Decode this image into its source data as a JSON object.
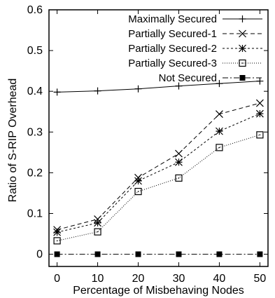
{
  "chart_data": {
    "type": "line",
    "xlabel": "Percentage of Misbehaving Nodes",
    "ylabel": "Ratio of S-RIP Overhead",
    "xlim": [
      -2,
      52
    ],
    "ylim": [
      -0.03,
      0.6
    ],
    "x_ticks": [
      0,
      10,
      20,
      30,
      40,
      50
    ],
    "x_tick_labels": [
      "0",
      "10",
      "20",
      "30",
      "40",
      "50"
    ],
    "y_ticks": [
      0,
      0.1,
      0.2,
      0.3,
      0.4,
      0.5,
      0.6
    ],
    "y_tick_labels": [
      "0",
      "0.1",
      "0.2",
      "0.3",
      "0.4",
      "0.5",
      "0.6"
    ],
    "legend_position": "top-right",
    "grid": false,
    "x": [
      0,
      10,
      20,
      30,
      40,
      50
    ],
    "series": [
      {
        "name": "Maximally Secured",
        "marker": "plus",
        "dash": "",
        "values": [
          0.398,
          0.401,
          0.406,
          0.413,
          0.419,
          0.425
        ]
      },
      {
        "name": "Partially Secured-1",
        "marker": "cross",
        "dash": "6,4",
        "values": [
          0.06,
          0.086,
          0.188,
          0.247,
          0.344,
          0.371
        ]
      },
      {
        "name": "Partially Secured-2",
        "marker": "star",
        "dash": "3,3",
        "values": [
          0.054,
          0.077,
          0.18,
          0.226,
          0.302,
          0.345
        ]
      },
      {
        "name": "Partially Secured-3",
        "marker": "open-square",
        "dash": "1,2",
        "values": [
          0.033,
          0.055,
          0.154,
          0.187,
          0.262,
          0.293
        ]
      },
      {
        "name": "Not Secured",
        "marker": "filled-square",
        "dash": "8,3,2,3",
        "values": [
          0.0,
          0.0,
          0.0,
          0.0,
          0.0,
          0.0
        ]
      }
    ]
  }
}
